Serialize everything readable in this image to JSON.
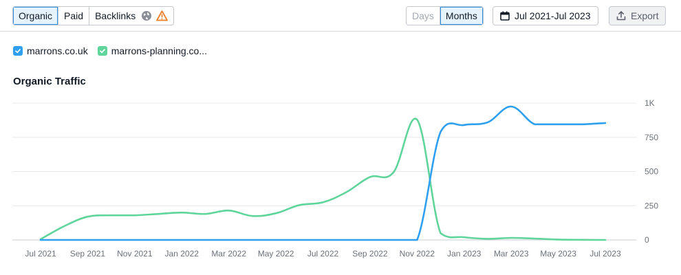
{
  "toolbar": {
    "tabs": [
      {
        "label": "Organic",
        "active": true
      },
      {
        "label": "Paid",
        "active": false
      },
      {
        "label": "Backlinks",
        "active": false
      }
    ],
    "icons": [
      "globe-icon",
      "warning-icon"
    ],
    "granularity": [
      {
        "label": "Days",
        "active": false,
        "disabled": true
      },
      {
        "label": "Months",
        "active": true,
        "disabled": false
      }
    ],
    "date_range": "Jul 2021-Jul 2023",
    "export_label": "Export"
  },
  "legend": [
    {
      "label": "marrons.co.uk",
      "color": "#2f9ff0"
    },
    {
      "label": "marrons-planning.co...",
      "color": "#5fd59c"
    }
  ],
  "chart_title": "Organic Traffic",
  "chart_data": {
    "type": "line",
    "title": "Organic Traffic",
    "x": [
      "Jul 2021",
      "Aug 2021",
      "Sep 2021",
      "Oct 2021",
      "Nov 2021",
      "Dec 2021",
      "Jan 2022",
      "Feb 2022",
      "Mar 2022",
      "Apr 2022",
      "May 2022",
      "Jun 2022",
      "Jul 2022",
      "Aug 2022",
      "Sep 2022",
      "Oct 2022",
      "Nov 2022",
      "Dec 2022",
      "Jan 2023",
      "Feb 2023",
      "Mar 2023",
      "Apr 2023",
      "May 2023",
      "Jun 2023",
      "Jul 2023"
    ],
    "x_tick_labels": [
      "Jul 2021",
      "Sep 2021",
      "Nov 2021",
      "Jan 2022",
      "Mar 2022",
      "May 2022",
      "Jul 2022",
      "Sep 2022",
      "Nov 2022",
      "Jan 2023",
      "Mar 2023",
      "May 2023",
      "Jul 2023"
    ],
    "y_tick_labels": [
      "0",
      "250",
      "500",
      "750",
      "1K"
    ],
    "ylim": [
      0,
      1000
    ],
    "y_axis_side": "right",
    "grid": true,
    "series": [
      {
        "name": "marrons.co.uk",
        "color": "#2f9ff0",
        "values": [
          0,
          0,
          0,
          0,
          0,
          0,
          0,
          0,
          0,
          0,
          0,
          0,
          0,
          0,
          0,
          0,
          0,
          790,
          840,
          860,
          975,
          845,
          845,
          845,
          855
        ]
      },
      {
        "name": "marrons-planning.co...",
        "color": "#5fd59c",
        "values": [
          5,
          100,
          170,
          180,
          180,
          190,
          200,
          190,
          215,
          175,
          195,
          255,
          275,
          350,
          460,
          495,
          880,
          50,
          20,
          8,
          15,
          10,
          3,
          1,
          0
        ]
      }
    ]
  }
}
